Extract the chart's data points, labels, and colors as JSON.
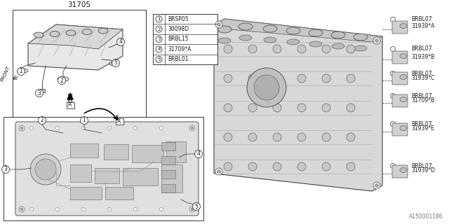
{
  "bg_color": "#ffffff",
  "part_number_main": "31705",
  "legend_items": [
    {
      "num": "1",
      "code": "BRSP05"
    },
    {
      "num": "2",
      "code": "30098D"
    },
    {
      "num": "3",
      "code": "BRBL15"
    },
    {
      "num": "4",
      "code": "31709*A"
    },
    {
      "num": "5",
      "code": "BRBL01"
    }
  ],
  "right_labels": [
    {
      "bolt": "BRBL07",
      "part": "31939*A"
    },
    {
      "bolt": "BRBL07",
      "part": "31939*B"
    },
    {
      "bolt": "BRBL07",
      "part": "31939*C"
    },
    {
      "bolt": "BRBL07",
      "part": "31709*B"
    },
    {
      "bolt": "BRBL07",
      "part": "31939*E"
    },
    {
      "bolt": "BRBL07",
      "part": "31939*D"
    }
  ],
  "watermark": "A150001186",
  "front_label": "FRONT"
}
